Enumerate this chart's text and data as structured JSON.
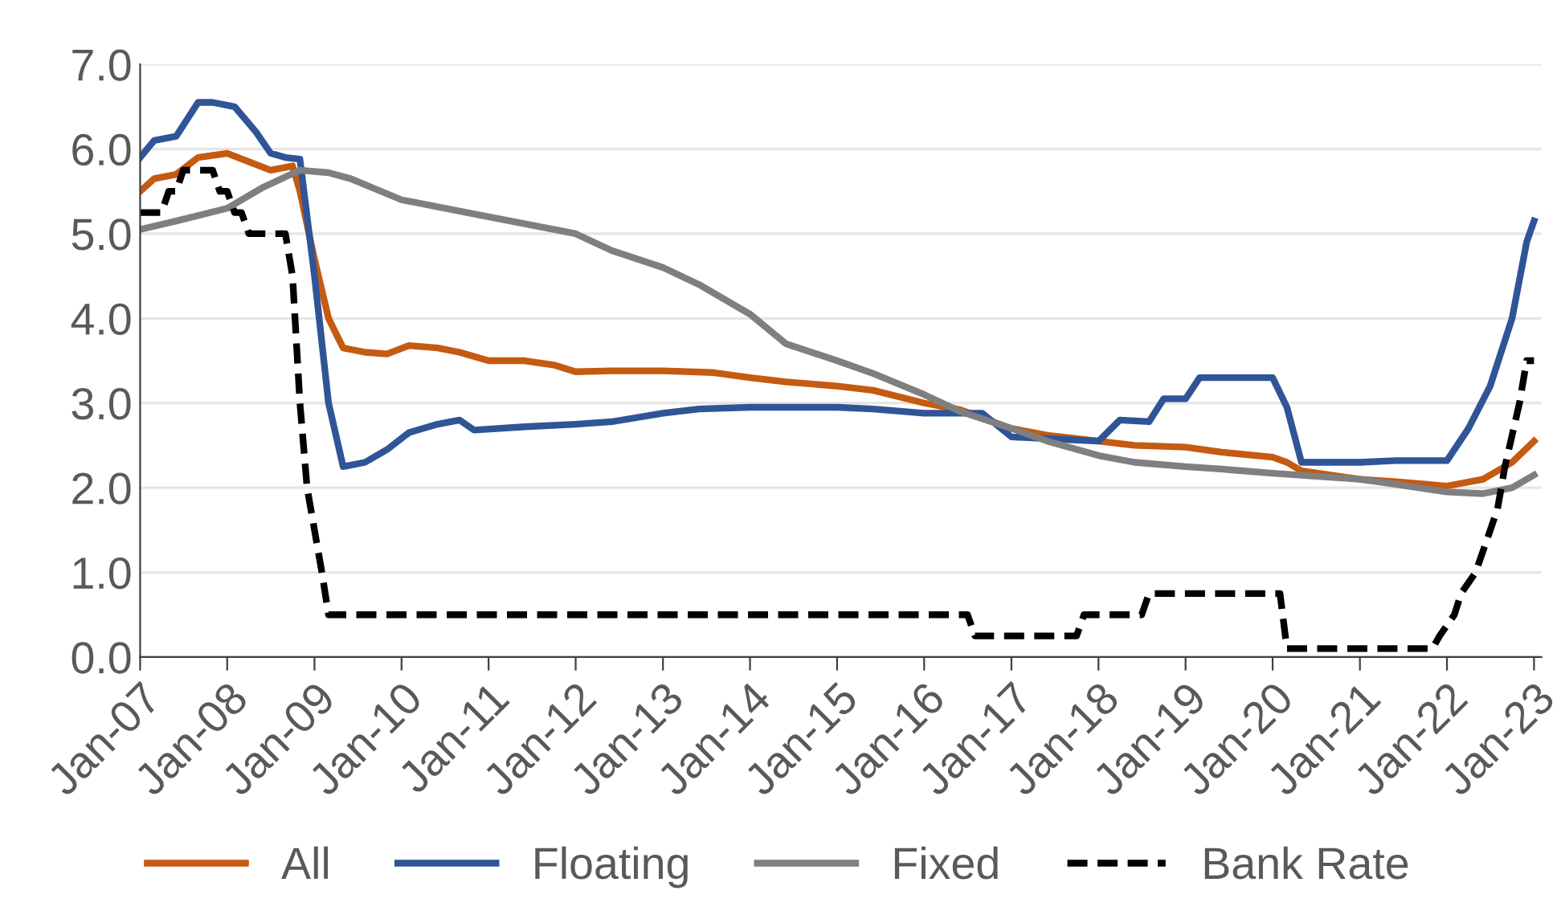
{
  "chart_data": {
    "type": "line",
    "xlim": [
      "2007-01",
      "2023-02"
    ],
    "xticks": [
      {
        "value": "2007-01",
        "label": "Jan-07"
      },
      {
        "value": "2008-01",
        "label": "Jan-08"
      },
      {
        "value": "2009-01",
        "label": "Jan-09"
      },
      {
        "value": "2010-01",
        "label": "Jan-10"
      },
      {
        "value": "2011-01",
        "label": "Jan-11"
      },
      {
        "value": "2012-01",
        "label": "Jan-12"
      },
      {
        "value": "2013-01",
        "label": "Jan-13"
      },
      {
        "value": "2014-01",
        "label": "Jan-14"
      },
      {
        "value": "2015-01",
        "label": "Jan-15"
      },
      {
        "value": "2016-01",
        "label": "Jan-16"
      },
      {
        "value": "2017-01",
        "label": "Jan-17"
      },
      {
        "value": "2018-01",
        "label": "Jan-18"
      },
      {
        "value": "2019-01",
        "label": "Jan-19"
      },
      {
        "value": "2020-01",
        "label": "Jan-20"
      },
      {
        "value": "2021-01",
        "label": "Jan-21"
      },
      {
        "value": "2022-01",
        "label": "Jan-22"
      },
      {
        "value": "2023-01",
        "label": "Jan-23"
      }
    ],
    "ylim": [
      0,
      7
    ],
    "yticks": [
      {
        "value": 0,
        "label": "0.0"
      },
      {
        "value": 1,
        "label": "1.0"
      },
      {
        "value": 2,
        "label": "2.0"
      },
      {
        "value": 3,
        "label": "3.0"
      },
      {
        "value": 4,
        "label": "4.0"
      },
      {
        "value": 5,
        "label": "5.0"
      },
      {
        "value": 6,
        "label": "6.0"
      },
      {
        "value": 7,
        "label": "7.0"
      }
    ],
    "grid": "y",
    "legend": "bottom",
    "marker": "none",
    "series": [
      {
        "name": "All",
        "color": "#c55a11",
        "line_style": "solid",
        "x": [
          "2007-01",
          "2007-03",
          "2007-06",
          "2007-09",
          "2008-01",
          "2008-04",
          "2008-07",
          "2008-10",
          "2008-11",
          "2009-01",
          "2009-03",
          "2009-05",
          "2009-08",
          "2009-11",
          "2010-02",
          "2010-06",
          "2010-09",
          "2011-01",
          "2011-06",
          "2011-10",
          "2012-01",
          "2012-06",
          "2013-01",
          "2013-08",
          "2014-01",
          "2014-06",
          "2015-01",
          "2015-06",
          "2016-01",
          "2016-06",
          "2017-01",
          "2017-06",
          "2018-01",
          "2018-06",
          "2019-01",
          "2019-06",
          "2020-01",
          "2020-03",
          "2020-05",
          "2021-01",
          "2021-06",
          "2022-01",
          "2022-06",
          "2022-10",
          "2023-01"
        ],
        "values": [
          5.5,
          5.65,
          5.7,
          5.9,
          5.95,
          5.85,
          5.75,
          5.8,
          5.5,
          4.7,
          4.0,
          3.65,
          3.6,
          3.58,
          3.68,
          3.65,
          3.6,
          3.5,
          3.5,
          3.45,
          3.37,
          3.38,
          3.38,
          3.36,
          3.3,
          3.25,
          3.2,
          3.15,
          3.0,
          2.92,
          2.7,
          2.62,
          2.55,
          2.5,
          2.48,
          2.42,
          2.36,
          2.3,
          2.2,
          2.1,
          2.07,
          2.02,
          2.1,
          2.3,
          2.55
        ]
      },
      {
        "name": "Floating",
        "color": "#2f5597",
        "line_style": "solid",
        "x": [
          "2007-01",
          "2007-03",
          "2007-06",
          "2007-09",
          "2007-11",
          "2008-02",
          "2008-05",
          "2008-07",
          "2008-09",
          "2008-11",
          "2009-01",
          "2009-03",
          "2009-05",
          "2009-08",
          "2009-11",
          "2010-02",
          "2010-06",
          "2010-09",
          "2010-11",
          "2011-06",
          "2012-01",
          "2012-06",
          "2013-01",
          "2013-06",
          "2014-01",
          "2015-01",
          "2015-06",
          "2016-01",
          "2016-09",
          "2017-01",
          "2017-06",
          "2018-01",
          "2018-04",
          "2018-08",
          "2018-10",
          "2019-01",
          "2019-03",
          "2019-06",
          "2020-01",
          "2020-03",
          "2020-05",
          "2021-01",
          "2021-06",
          "2022-01",
          "2022-04",
          "2022-07",
          "2022-10",
          "2022-12",
          "2023-01"
        ],
        "values": [
          5.9,
          6.1,
          6.15,
          6.55,
          6.55,
          6.5,
          6.2,
          5.95,
          5.9,
          5.88,
          4.5,
          3.0,
          2.25,
          2.3,
          2.45,
          2.65,
          2.75,
          2.8,
          2.68,
          2.72,
          2.75,
          2.78,
          2.88,
          2.93,
          2.95,
          2.95,
          2.93,
          2.88,
          2.88,
          2.6,
          2.58,
          2.55,
          2.8,
          2.78,
          3.05,
          3.05,
          3.3,
          3.3,
          3.3,
          2.95,
          2.3,
          2.3,
          2.32,
          2.32,
          2.7,
          3.2,
          4.0,
          4.9,
          5.15
        ]
      },
      {
        "name": "Fixed",
        "color": "#7f7f7f",
        "line_style": "solid",
        "x": [
          "2007-01",
          "2007-06",
          "2008-01",
          "2008-06",
          "2008-11",
          "2009-03",
          "2009-06",
          "2010-01",
          "2011-01",
          "2012-01",
          "2012-06",
          "2013-01",
          "2013-06",
          "2014-01",
          "2014-06",
          "2015-01",
          "2015-06",
          "2016-01",
          "2016-06",
          "2017-01",
          "2017-06",
          "2018-01",
          "2018-06",
          "2019-01",
          "2019-06",
          "2020-01",
          "2021-01",
          "2021-06",
          "2022-01",
          "2022-06",
          "2022-10",
          "2023-01"
        ],
        "values": [
          5.05,
          5.15,
          5.3,
          5.55,
          5.75,
          5.72,
          5.65,
          5.4,
          5.2,
          5.0,
          4.8,
          4.6,
          4.4,
          4.05,
          3.7,
          3.5,
          3.35,
          3.1,
          2.9,
          2.7,
          2.55,
          2.38,
          2.3,
          2.25,
          2.22,
          2.17,
          2.1,
          2.04,
          1.95,
          1.93,
          2.0,
          2.15
        ]
      },
      {
        "name": "Bank Rate",
        "color": "#000000",
        "line_style": "dashed",
        "x": [
          "2007-01",
          "2007-04",
          "2007-05",
          "2007-06",
          "2007-07",
          "2007-11",
          "2007-12",
          "2008-01",
          "2008-02",
          "2008-03",
          "2008-04",
          "2008-09",
          "2008-10",
          "2008-11",
          "2008-12",
          "2009-01",
          "2009-02",
          "2009-03",
          "2016-07",
          "2016-08",
          "2017-10",
          "2017-11",
          "2018-07",
          "2018-08",
          "2020-02",
          "2020-03",
          "2021-11",
          "2021-12",
          "2022-02",
          "2022-03",
          "2022-05",
          "2022-06",
          "2022-08",
          "2022-09",
          "2022-11",
          "2022-12",
          "2023-01"
        ],
        "values": [
          5.25,
          5.25,
          5.5,
          5.5,
          5.75,
          5.75,
          5.5,
          5.5,
          5.25,
          5.25,
          5.0,
          5.0,
          4.5,
          3.0,
          2.0,
          1.5,
          1.0,
          0.5,
          0.5,
          0.25,
          0.25,
          0.5,
          0.5,
          0.75,
          0.75,
          0.1,
          0.1,
          0.25,
          0.5,
          0.75,
          1.0,
          1.25,
          1.75,
          2.25,
          3.0,
          3.5,
          3.5
        ]
      }
    ]
  }
}
